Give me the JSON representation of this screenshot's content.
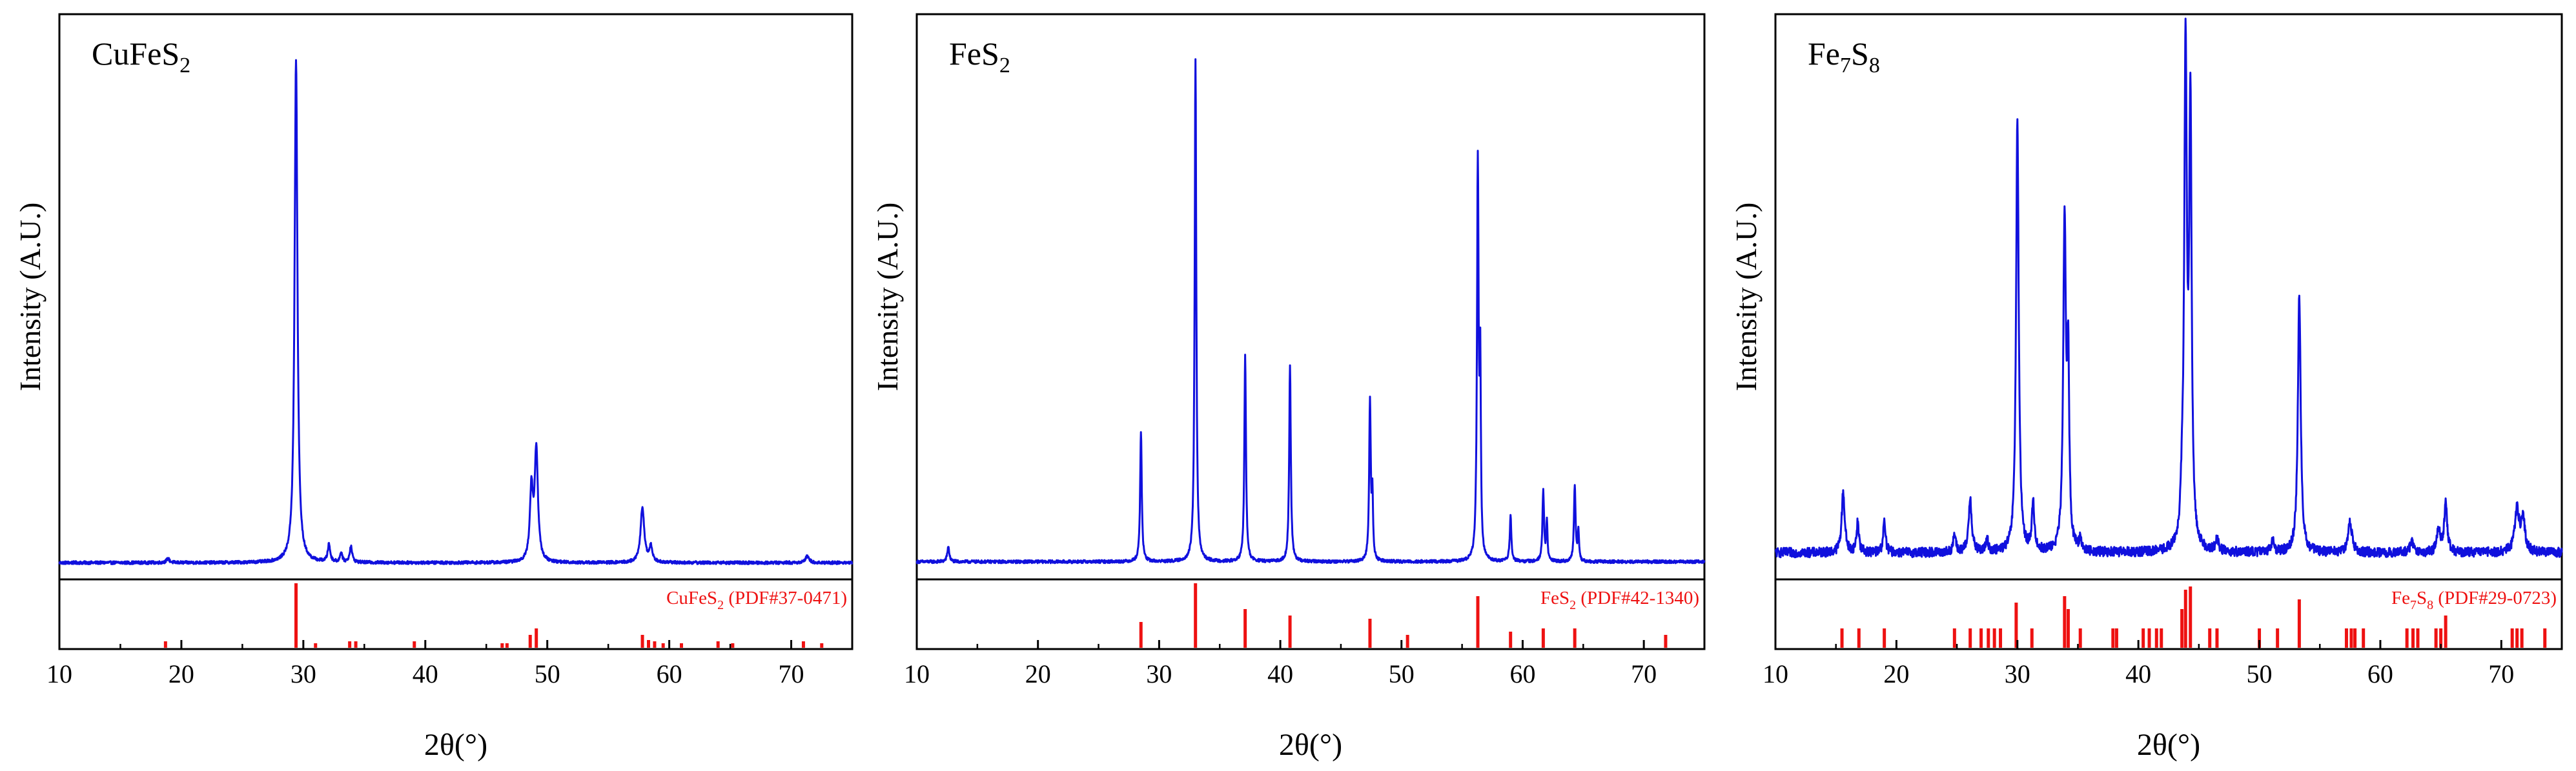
{
  "chart_data": [
    {
      "type": "line",
      "title_main": "CuFeS",
      "title_sub": "2",
      "title_rest": "",
      "xlabel": "2θ(°)",
      "ylabel": "Intensity (A.U.)",
      "xlim": [
        10,
        75
      ],
      "xticks": [
        "10",
        "20",
        "30",
        "40",
        "50",
        "60",
        "70"
      ],
      "line_color": "#1010dd",
      "ref_color": "#ee1111",
      "ref_label_main": "CuFeS",
      "ref_label_sub": "2",
      "ref_label_rest": " (PDF#37-0471)",
      "baseline": 0.01,
      "noise": 0.003,
      "peaks": [
        {
          "x": 18.9,
          "h": 0.008,
          "w": 0.15
        },
        {
          "x": 29.4,
          "h": 1.0,
          "w": 0.14
        },
        {
          "x": 32.1,
          "h": 0.035,
          "w": 0.12
        },
        {
          "x": 33.1,
          "h": 0.02,
          "w": 0.1
        },
        {
          "x": 33.9,
          "h": 0.032,
          "w": 0.12
        },
        {
          "x": 48.7,
          "h": 0.14,
          "w": 0.15
        },
        {
          "x": 49.1,
          "h": 0.22,
          "w": 0.16
        },
        {
          "x": 57.8,
          "h": 0.11,
          "w": 0.18
        },
        {
          "x": 58.5,
          "h": 0.03,
          "w": 0.15
        },
        {
          "x": 71.3,
          "h": 0.012,
          "w": 0.2
        }
      ],
      "refs": [
        {
          "x": 18.7,
          "h": 0.1
        },
        {
          "x": 29.4,
          "h": 1.0
        },
        {
          "x": 31.0,
          "h": 0.07
        },
        {
          "x": 33.8,
          "h": 0.1
        },
        {
          "x": 34.3,
          "h": 0.1
        },
        {
          "x": 39.1,
          "h": 0.1
        },
        {
          "x": 46.3,
          "h": 0.07
        },
        {
          "x": 46.7,
          "h": 0.07
        },
        {
          "x": 48.6,
          "h": 0.2
        },
        {
          "x": 49.1,
          "h": 0.3
        },
        {
          "x": 57.8,
          "h": 0.2
        },
        {
          "x": 58.3,
          "h": 0.12
        },
        {
          "x": 58.8,
          "h": 0.1
        },
        {
          "x": 59.5,
          "h": 0.07
        },
        {
          "x": 61.0,
          "h": 0.07
        },
        {
          "x": 64.0,
          "h": 0.1
        },
        {
          "x": 65.2,
          "h": 0.07
        },
        {
          "x": 71.0,
          "h": 0.1
        },
        {
          "x": 72.5,
          "h": 0.07
        }
      ]
    },
    {
      "type": "line",
      "title_main": "FeS",
      "title_sub": "2",
      "title_rest": "",
      "xlabel": "2θ(°)",
      "ylabel": "Intensity (A.U.)",
      "xlim": [
        10,
        75
      ],
      "xticks": [
        "10",
        "20",
        "30",
        "40",
        "50",
        "60",
        "70"
      ],
      "line_color": "#1010dd",
      "ref_color": "#ee1111",
      "ref_label_main": "FeS",
      "ref_label_sub": "2",
      "ref_label_rest": " (PDF#42-1340)",
      "baseline": 0.012,
      "noise": 0.003,
      "peaks": [
        {
          "x": 12.6,
          "h": 0.03,
          "w": 0.1
        },
        {
          "x": 28.5,
          "h": 0.26,
          "w": 0.08
        },
        {
          "x": 33.0,
          "h": 1.0,
          "w": 0.08
        },
        {
          "x": 37.1,
          "h": 0.41,
          "w": 0.08
        },
        {
          "x": 40.8,
          "h": 0.39,
          "w": 0.08
        },
        {
          "x": 47.4,
          "h": 0.32,
          "w": 0.08
        },
        {
          "x": 47.6,
          "h": 0.12,
          "w": 0.06
        },
        {
          "x": 56.3,
          "h": 0.79,
          "w": 0.08
        },
        {
          "x": 56.5,
          "h": 0.36,
          "w": 0.06
        },
        {
          "x": 59.0,
          "h": 0.09,
          "w": 0.08
        },
        {
          "x": 61.7,
          "h": 0.14,
          "w": 0.08
        },
        {
          "x": 62.0,
          "h": 0.08,
          "w": 0.06
        },
        {
          "x": 64.3,
          "h": 0.15,
          "w": 0.08
        },
        {
          "x": 64.6,
          "h": 0.06,
          "w": 0.06
        }
      ],
      "refs": [
        {
          "x": 28.5,
          "h": 0.4
        },
        {
          "x": 33.0,
          "h": 1.0
        },
        {
          "x": 37.1,
          "h": 0.6
        },
        {
          "x": 40.8,
          "h": 0.5
        },
        {
          "x": 47.4,
          "h": 0.45
        },
        {
          "x": 50.5,
          "h": 0.2
        },
        {
          "x": 56.3,
          "h": 0.8
        },
        {
          "x": 59.0,
          "h": 0.25
        },
        {
          "x": 61.7,
          "h": 0.3
        },
        {
          "x": 64.3,
          "h": 0.3
        },
        {
          "x": 71.8,
          "h": 0.2
        }
      ]
    },
    {
      "type": "line",
      "title_main": "Fe",
      "title_sub": "7",
      "title_rest": "S",
      "title_sub2": "8",
      "xlabel": "2θ(°)",
      "ylabel": "Intensity (A.U.)",
      "xlim": [
        10,
        75
      ],
      "xticks": [
        "10",
        "20",
        "30",
        "40",
        "50",
        "60",
        "70"
      ],
      "line_color": "#1010dd",
      "ref_color": "#ee1111",
      "ref_label_main": "Fe",
      "ref_label_sub": "7",
      "ref_label_rest": "S",
      "ref_label_sub2": "8",
      "ref_label_tail": " (PDF#29-0723)",
      "baseline": 0.025,
      "noise": 0.008,
      "peaks": [
        {
          "x": 15.6,
          "h": 0.1,
          "w": 0.15
        },
        {
          "x": 16.8,
          "h": 0.05,
          "w": 0.12
        },
        {
          "x": 19.0,
          "h": 0.05,
          "w": 0.12
        },
        {
          "x": 24.8,
          "h": 0.03,
          "w": 0.12
        },
        {
          "x": 26.1,
          "h": 0.09,
          "w": 0.15
        },
        {
          "x": 27.5,
          "h": 0.02,
          "w": 0.12
        },
        {
          "x": 30.0,
          "h": 0.72,
          "w": 0.13
        },
        {
          "x": 31.3,
          "h": 0.08,
          "w": 0.12
        },
        {
          "x": 33.9,
          "h": 0.55,
          "w": 0.13
        },
        {
          "x": 34.2,
          "h": 0.3,
          "w": 0.1
        },
        {
          "x": 35.2,
          "h": 0.02,
          "w": 0.12
        },
        {
          "x": 43.6,
          "h": 0.05,
          "w": 0.12
        },
        {
          "x": 43.9,
          "h": 0.82,
          "w": 0.13
        },
        {
          "x": 44.3,
          "h": 0.72,
          "w": 0.12
        },
        {
          "x": 46.5,
          "h": 0.02,
          "w": 0.15
        },
        {
          "x": 51.1,
          "h": 0.02,
          "w": 0.15
        },
        {
          "x": 53.3,
          "h": 0.43,
          "w": 0.14
        },
        {
          "x": 57.5,
          "h": 0.05,
          "w": 0.2
        },
        {
          "x": 62.6,
          "h": 0.02,
          "w": 0.15
        },
        {
          "x": 64.8,
          "h": 0.04,
          "w": 0.15
        },
        {
          "x": 65.4,
          "h": 0.08,
          "w": 0.15
        },
        {
          "x": 71.3,
          "h": 0.07,
          "w": 0.22
        },
        {
          "x": 71.8,
          "h": 0.05,
          "w": 0.2
        }
      ],
      "refs": [
        {
          "x": 15.5,
          "h": 0.3
        },
        {
          "x": 16.9,
          "h": 0.3
        },
        {
          "x": 19.0,
          "h": 0.3
        },
        {
          "x": 24.8,
          "h": 0.3
        },
        {
          "x": 26.1,
          "h": 0.3
        },
        {
          "x": 27.0,
          "h": 0.3
        },
        {
          "x": 27.6,
          "h": 0.3
        },
        {
          "x": 28.1,
          "h": 0.3
        },
        {
          "x": 28.6,
          "h": 0.3
        },
        {
          "x": 29.9,
          "h": 0.7
        },
        {
          "x": 31.2,
          "h": 0.3
        },
        {
          "x": 33.9,
          "h": 0.8
        },
        {
          "x": 34.2,
          "h": 0.6
        },
        {
          "x": 35.2,
          "h": 0.3
        },
        {
          "x": 37.9,
          "h": 0.3
        },
        {
          "x": 38.2,
          "h": 0.3
        },
        {
          "x": 40.4,
          "h": 0.3
        },
        {
          "x": 40.9,
          "h": 0.3
        },
        {
          "x": 41.5,
          "h": 0.3
        },
        {
          "x": 41.9,
          "h": 0.3
        },
        {
          "x": 43.6,
          "h": 0.6
        },
        {
          "x": 43.9,
          "h": 0.9
        },
        {
          "x": 44.3,
          "h": 0.95
        },
        {
          "x": 45.9,
          "h": 0.3
        },
        {
          "x": 46.5,
          "h": 0.3
        },
        {
          "x": 50.0,
          "h": 0.3
        },
        {
          "x": 51.5,
          "h": 0.3
        },
        {
          "x": 53.3,
          "h": 0.75
        },
        {
          "x": 57.2,
          "h": 0.3
        },
        {
          "x": 57.6,
          "h": 0.3
        },
        {
          "x": 57.9,
          "h": 0.3
        },
        {
          "x": 58.6,
          "h": 0.3
        },
        {
          "x": 62.2,
          "h": 0.3
        },
        {
          "x": 62.7,
          "h": 0.3
        },
        {
          "x": 63.1,
          "h": 0.3
        },
        {
          "x": 64.6,
          "h": 0.3
        },
        {
          "x": 65.0,
          "h": 0.3
        },
        {
          "x": 65.4,
          "h": 0.5
        },
        {
          "x": 70.9,
          "h": 0.3
        },
        {
          "x": 71.3,
          "h": 0.3
        },
        {
          "x": 71.7,
          "h": 0.3
        },
        {
          "x": 73.6,
          "h": 0.3
        }
      ]
    }
  ]
}
